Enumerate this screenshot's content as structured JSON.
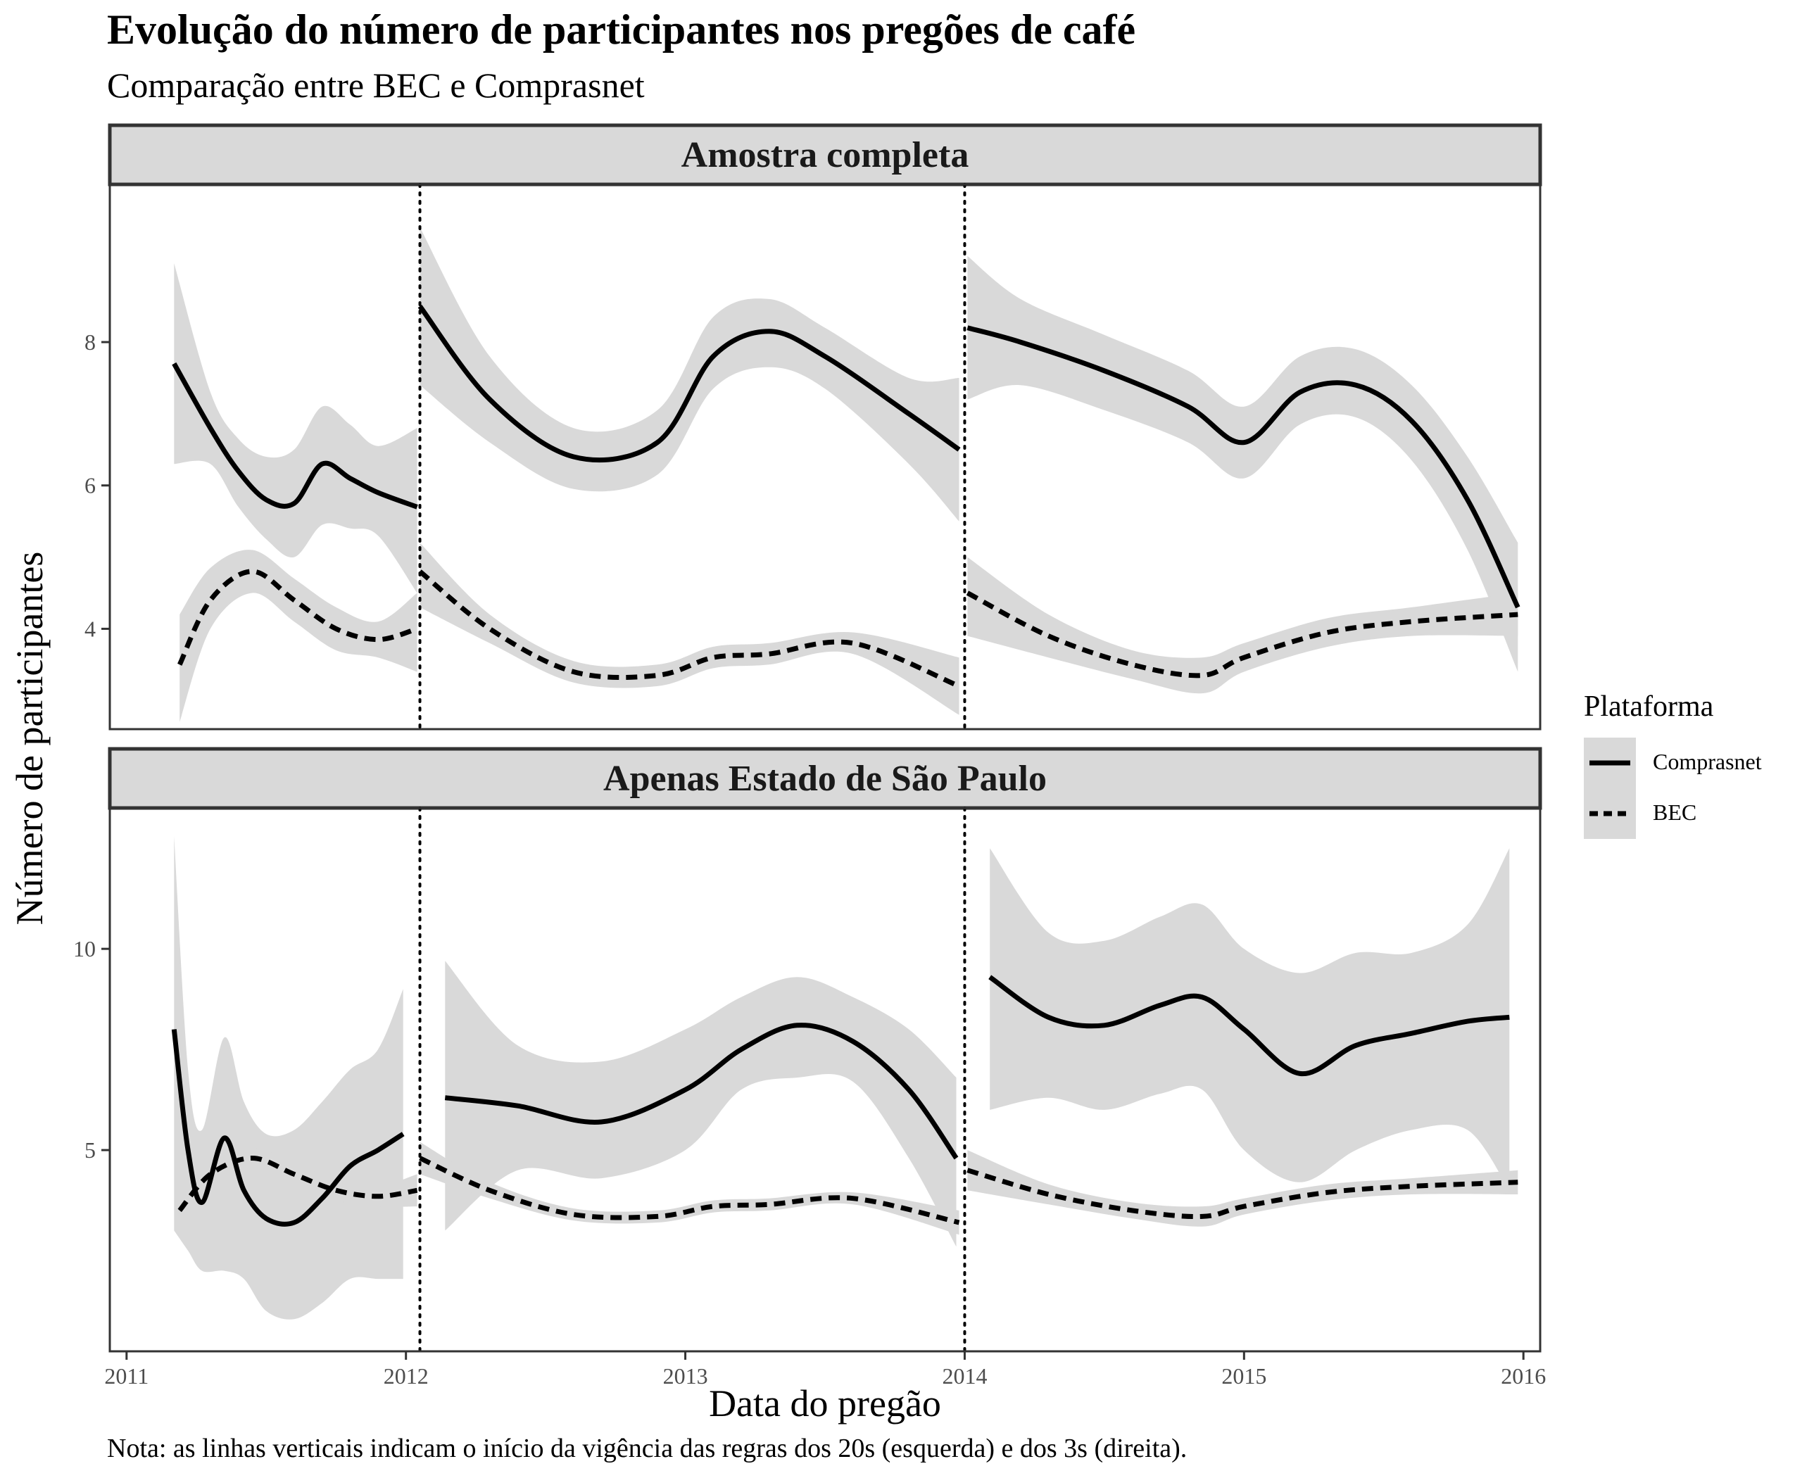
{
  "title": "Evolução do número de participantes nos pregões de café",
  "subtitle": "Comparação entre BEC e Comprasnet",
  "caption": "Nota: as linhas verticais indicam o início da vigência das regras dos 20s (esquerda) e dos 3s (direita).",
  "colors": {
    "line": "#000000",
    "band": "#d9d9d9",
    "strip": "#d9d9d9",
    "panel_border": "#333333",
    "tick_text": "#4d4d4d"
  },
  "chart_data": {
    "type": "line",
    "xlabel": "Data do pregão",
    "ylabel": "Número de participantes",
    "x_type": "date (decimal year)",
    "xlim": [
      2010.94,
      2016.06
    ],
    "x_ticks": [
      2011,
      2012,
      2013,
      2014,
      2015,
      2016
    ],
    "x_tick_labels": [
      "2011",
      "2012",
      "2013",
      "2014",
      "2015",
      "2016"
    ],
    "grid": false,
    "legend": {
      "title": "Plataforma",
      "placement": "right",
      "entries": [
        {
          "label": "Comprasnet",
          "linetype": "solid"
        },
        {
          "label": "BEC",
          "linetype": "dashed"
        }
      ]
    },
    "vlines": [
      {
        "x": 2012.05,
        "linetype": "dotted"
      },
      {
        "x": 2014.0,
        "linetype": "dotted"
      }
    ],
    "panels": [
      {
        "strip": "Amostra completa",
        "ylim": [
          2.6,
          10.2
        ],
        "y_ticks": [
          4,
          6,
          8
        ],
        "y_tick_labels": [
          "4",
          "6",
          "8"
        ],
        "series": [
          {
            "name": "Comprasnet",
            "linetype": "solid",
            "segments": [
              {
                "x": [
                  2011.17,
                  2011.3,
                  2011.4,
                  2011.5,
                  2011.6,
                  2011.7,
                  2011.8,
                  2011.9,
                  2012.04
                ],
                "y": [
                  7.7,
                  6.8,
                  6.2,
                  5.8,
                  5.75,
                  6.3,
                  6.1,
                  5.9,
                  5.7
                ],
                "lo": [
                  6.3,
                  6.3,
                  5.7,
                  5.25,
                  5.0,
                  5.45,
                  5.4,
                  5.3,
                  4.5
                ],
                "hi": [
                  9.1,
                  7.3,
                  6.65,
                  6.4,
                  6.5,
                  7.1,
                  6.85,
                  6.55,
                  6.8
                ]
              },
              {
                "x": [
                  2012.05,
                  2012.3,
                  2012.6,
                  2012.9,
                  2013.1,
                  2013.3,
                  2013.5,
                  2013.8,
                  2013.98
                ],
                "y": [
                  8.5,
                  7.2,
                  6.4,
                  6.6,
                  7.8,
                  8.15,
                  7.8,
                  7.0,
                  6.5
                ],
                "lo": [
                  7.4,
                  6.6,
                  5.95,
                  6.15,
                  7.35,
                  7.65,
                  7.35,
                  6.3,
                  5.5
                ],
                "hi": [
                  9.6,
                  7.8,
                  6.8,
                  7.05,
                  8.35,
                  8.6,
                  8.2,
                  7.5,
                  7.5
                ]
              },
              {
                "x": [
                  2014.01,
                  2014.2,
                  2014.5,
                  2014.8,
                  2015.0,
                  2015.2,
                  2015.4,
                  2015.6,
                  2015.8,
                  2015.98
                ],
                "y": [
                  8.2,
                  8.0,
                  7.6,
                  7.1,
                  6.6,
                  7.3,
                  7.4,
                  6.9,
                  5.8,
                  4.3
                ],
                "lo": [
                  7.2,
                  7.4,
                  7.05,
                  6.6,
                  6.1,
                  6.85,
                  6.95,
                  6.35,
                  5.1,
                  3.4
                ],
                "hi": [
                  9.2,
                  8.6,
                  8.1,
                  7.6,
                  7.1,
                  7.8,
                  7.9,
                  7.4,
                  6.4,
                  5.2
                ]
              }
            ]
          },
          {
            "name": "BEC",
            "linetype": "dashed",
            "segments": [
              {
                "x": [
                  2011.19,
                  2011.3,
                  2011.45,
                  2011.6,
                  2011.75,
                  2011.9,
                  2012.04
                ],
                "y": [
                  3.5,
                  4.4,
                  4.8,
                  4.4,
                  4.0,
                  3.85,
                  4.0
                ],
                "lo": [
                  2.7,
                  4.0,
                  4.5,
                  4.1,
                  3.7,
                  3.6,
                  3.4
                ],
                "hi": [
                  4.2,
                  4.85,
                  5.1,
                  4.7,
                  4.3,
                  4.1,
                  4.5
                ]
              },
              {
                "x": [
                  2012.05,
                  2012.3,
                  2012.6,
                  2012.9,
                  2013.1,
                  2013.3,
                  2013.6,
                  2013.98
                ],
                "y": [
                  4.8,
                  4.0,
                  3.4,
                  3.35,
                  3.6,
                  3.65,
                  3.8,
                  3.2
                ],
                "lo": [
                  4.3,
                  3.8,
                  3.25,
                  3.2,
                  3.45,
                  3.5,
                  3.65,
                  2.8
                ],
                "hi": [
                  5.2,
                  4.2,
                  3.55,
                  3.5,
                  3.75,
                  3.8,
                  3.95,
                  3.6
                ]
              },
              {
                "x": [
                  2014.01,
                  2014.3,
                  2014.6,
                  2014.85,
                  2015.0,
                  2015.3,
                  2015.6,
                  2015.98
                ],
                "y": [
                  4.5,
                  3.9,
                  3.5,
                  3.35,
                  3.6,
                  3.95,
                  4.1,
                  4.2
                ],
                "lo": [
                  3.9,
                  3.6,
                  3.3,
                  3.1,
                  3.4,
                  3.75,
                  3.9,
                  3.9
                ],
                "hi": [
                  5.0,
                  4.2,
                  3.7,
                  3.6,
                  3.8,
                  4.15,
                  4.3,
                  4.5
                ]
              }
            ]
          }
        ]
      },
      {
        "strip": "Apenas Estado de São Paulo",
        "ylim": [
          0.0,
          13.5
        ],
        "y_ticks": [
          5,
          10
        ],
        "y_tick_labels": [
          "5",
          "10"
        ],
        "series": [
          {
            "name": "Comprasnet",
            "linetype": "solid",
            "segments": [
              {
                "x": [
                  2011.17,
                  2011.22,
                  2011.27,
                  2011.35,
                  2011.42,
                  2011.5,
                  2011.6,
                  2011.7,
                  2011.8,
                  2011.9,
                  2011.99
                ],
                "y": [
                  8.0,
                  5.0,
                  3.7,
                  5.3,
                  4.0,
                  3.3,
                  3.2,
                  3.8,
                  4.6,
                  5.0,
                  5.4
                ],
                "lo": [
                  3.0,
                  2.5,
                  2.0,
                  2.0,
                  1.8,
                  1.0,
                  0.8,
                  1.2,
                  1.8,
                  1.8,
                  1.8
                ],
                "hi": [
                  12.8,
                  7.0,
                  5.5,
                  7.8,
                  6.2,
                  5.4,
                  5.5,
                  6.2,
                  7.0,
                  7.5,
                  9.0
                ]
              },
              {
                "x": [
                  2012.14,
                  2012.4,
                  2012.7,
                  2013.0,
                  2013.2,
                  2013.4,
                  2013.6,
                  2013.8,
                  2013.97
                ],
                "y": [
                  6.3,
                  6.1,
                  5.7,
                  6.5,
                  7.5,
                  8.1,
                  7.7,
                  6.5,
                  4.8
                ],
                "lo": [
                  3.0,
                  4.5,
                  4.3,
                  5.0,
                  6.5,
                  6.8,
                  6.7,
                  4.8,
                  2.6
                ],
                "hi": [
                  9.7,
                  7.6,
                  7.2,
                  8.0,
                  8.8,
                  9.3,
                  8.8,
                  8.0,
                  6.8
                ]
              },
              {
                "x": [
                  2014.09,
                  2014.3,
                  2014.5,
                  2014.7,
                  2014.85,
                  2015.0,
                  2015.2,
                  2015.4,
                  2015.6,
                  2015.8,
                  2015.95
                ],
                "y": [
                  9.3,
                  8.3,
                  8.1,
                  8.6,
                  8.8,
                  8.0,
                  6.9,
                  7.6,
                  7.9,
                  8.2,
                  8.3
                ],
                "lo": [
                  6.0,
                  6.3,
                  6.0,
                  6.4,
                  6.5,
                  5.0,
                  4.2,
                  5.0,
                  5.5,
                  5.5,
                  4.0
                ],
                "hi": [
                  12.5,
                  10.4,
                  10.2,
                  10.8,
                  11.1,
                  10.0,
                  9.4,
                  9.9,
                  9.9,
                  10.6,
                  12.5
                ]
              }
            ]
          },
          {
            "name": "BEC",
            "linetype": "dashed",
            "segments": [
              {
                "x": [
                  2011.19,
                  2011.3,
                  2011.45,
                  2011.6,
                  2011.75,
                  2011.9,
                  2012.04
                ],
                "y": [
                  3.5,
                  4.4,
                  4.8,
                  4.4,
                  4.0,
                  3.85,
                  4.0
                ],
                "lo": [
                  3.1,
                  4.1,
                  4.55,
                  4.15,
                  3.75,
                  3.6,
                  3.6
                ],
                "hi": [
                  3.9,
                  4.75,
                  5.05,
                  4.7,
                  4.25,
                  4.1,
                  4.4
                ]
              },
              {
                "x": [
                  2012.05,
                  2012.3,
                  2012.6,
                  2012.9,
                  2013.1,
                  2013.3,
                  2013.6,
                  2013.98
                ],
                "y": [
                  4.8,
                  4.0,
                  3.4,
                  3.35,
                  3.6,
                  3.65,
                  3.8,
                  3.2
                ],
                "lo": [
                  4.4,
                  3.8,
                  3.25,
                  3.2,
                  3.45,
                  3.5,
                  3.65,
                  2.9
                ],
                "hi": [
                  5.2,
                  4.2,
                  3.55,
                  3.5,
                  3.75,
                  3.8,
                  3.95,
                  3.5
                ]
              },
              {
                "x": [
                  2014.01,
                  2014.3,
                  2014.6,
                  2014.85,
                  2015.0,
                  2015.3,
                  2015.6,
                  2015.98
                ],
                "y": [
                  4.5,
                  3.9,
                  3.5,
                  3.35,
                  3.6,
                  3.95,
                  4.1,
                  4.2
                ],
                "lo": [
                  4.0,
                  3.65,
                  3.3,
                  3.1,
                  3.4,
                  3.75,
                  3.9,
                  3.9
                ],
                "hi": [
                  5.0,
                  4.15,
                  3.7,
                  3.6,
                  3.8,
                  4.15,
                  4.3,
                  4.5
                ]
              }
            ]
          }
        ]
      }
    ]
  }
}
